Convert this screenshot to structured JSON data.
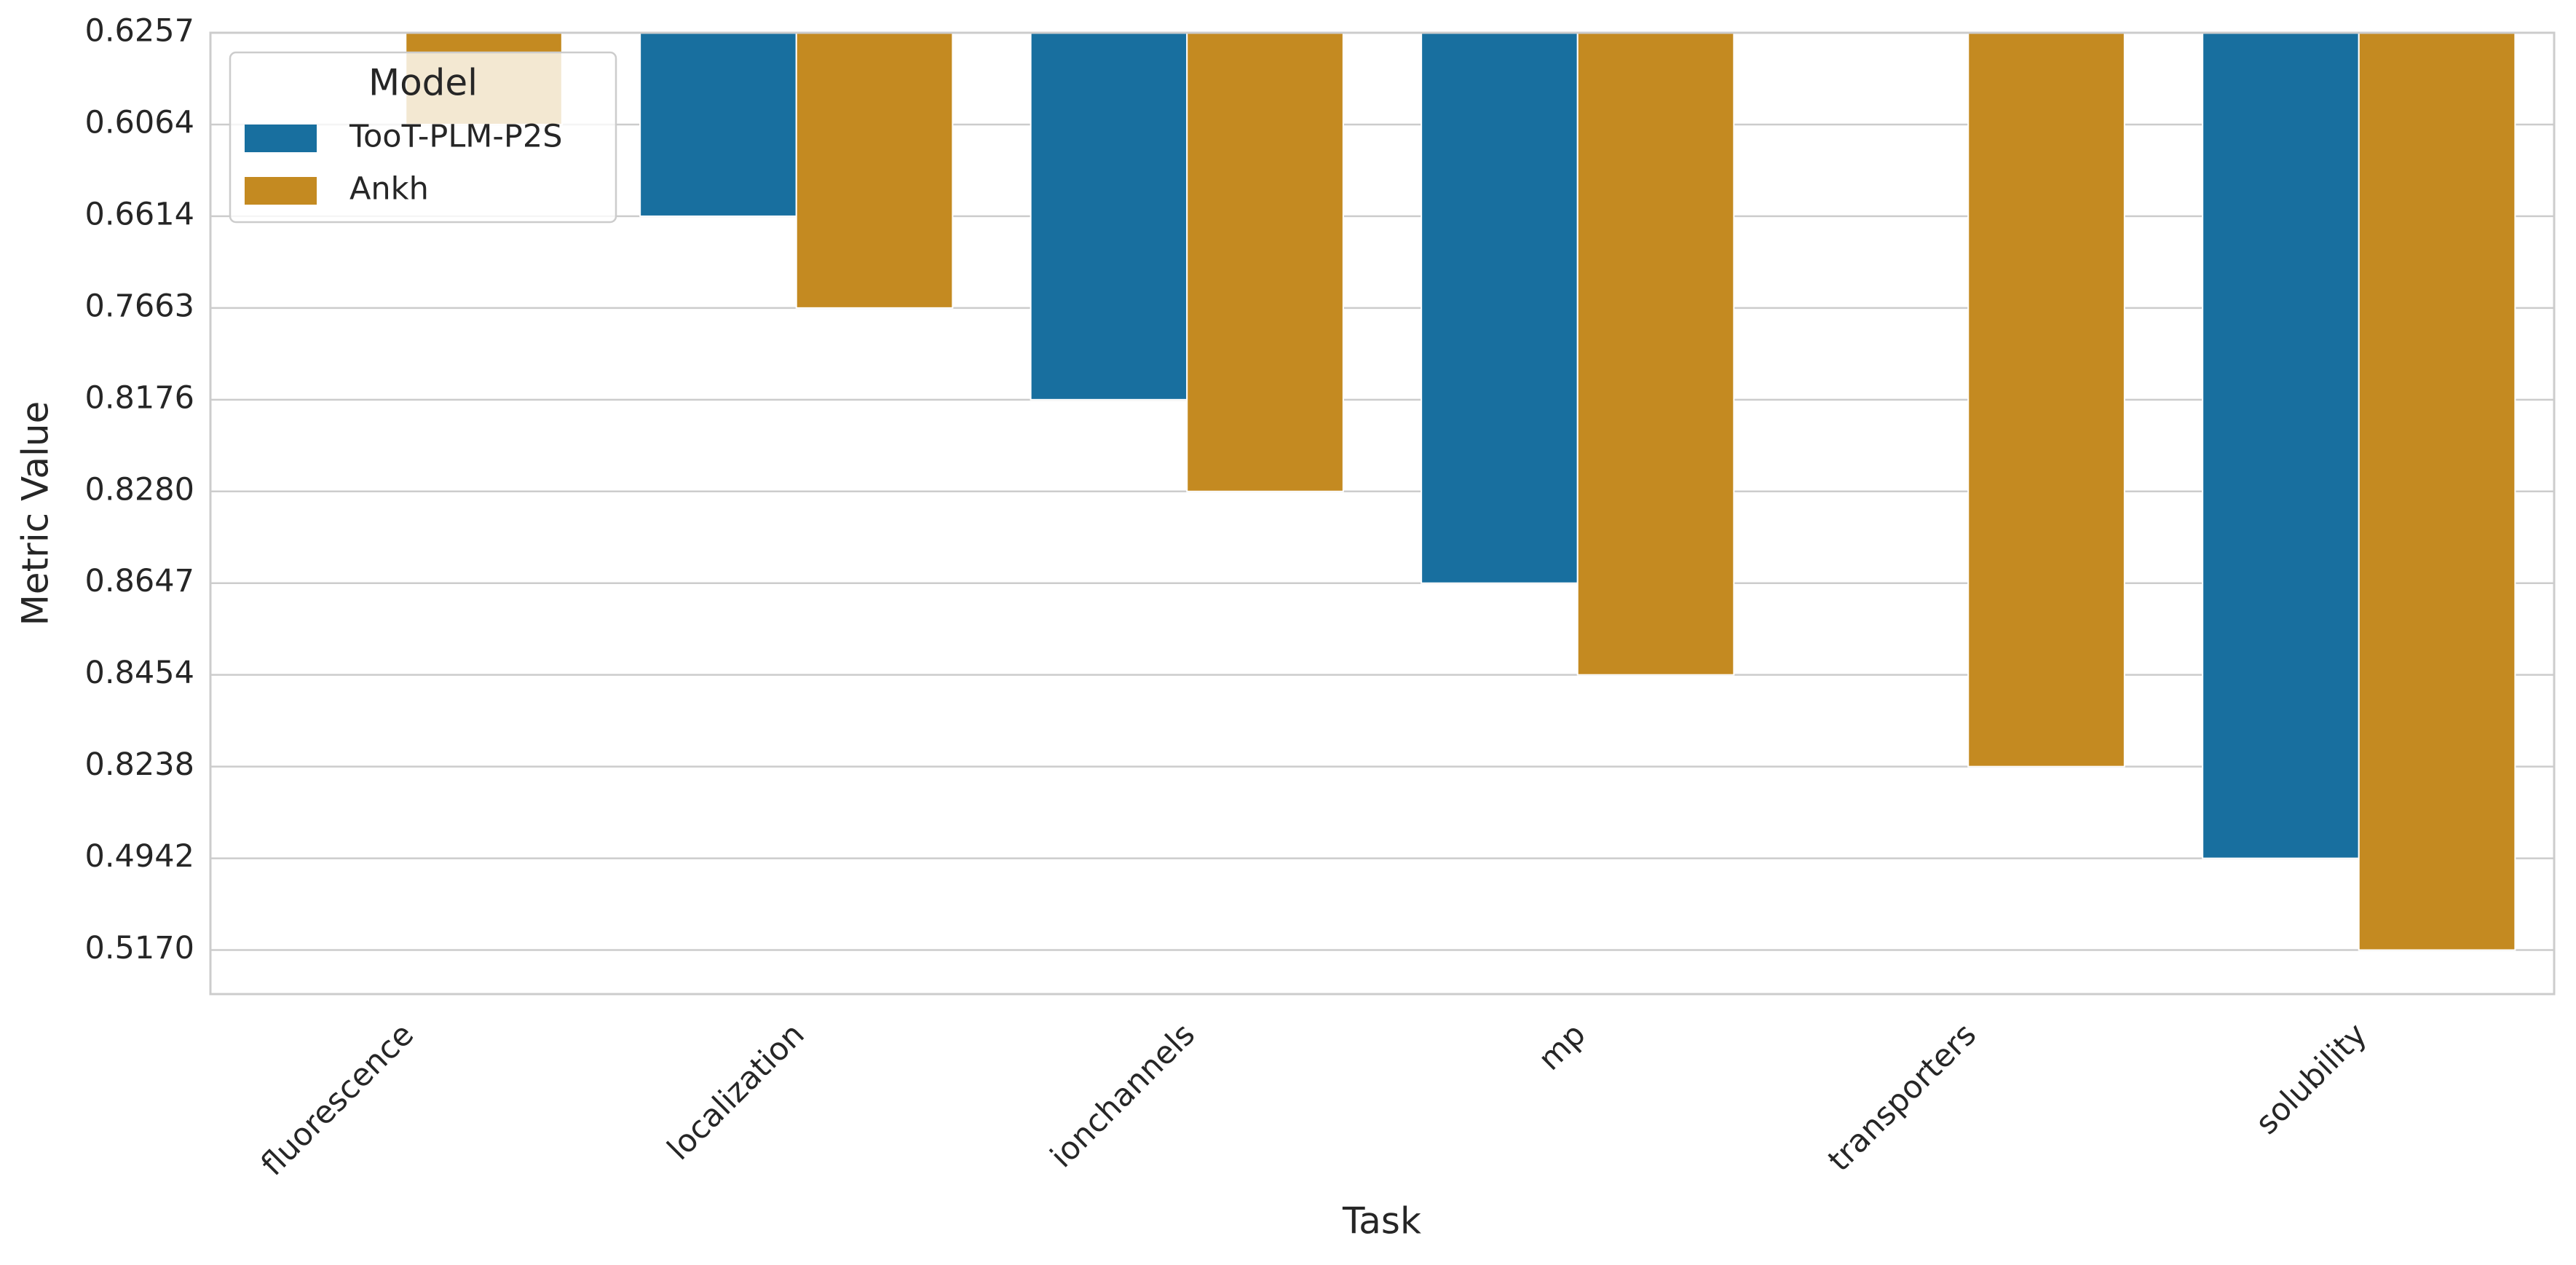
{
  "chart_data": {
    "type": "bar",
    "x_label": "Task",
    "y_label": "Metric Value",
    "categories": [
      "fluorescence",
      "localization",
      "ionchannels",
      "mp",
      "transporters",
      "solubility"
    ],
    "series": [
      {
        "name": "TooT-PLM-P2S",
        "color": "#186f9f",
        "values": [
          0,
          2,
          4,
          6,
          null,
          9
        ]
      },
      {
        "name": "Ankh",
        "color": "#c48a21",
        "values": [
          1,
          3,
          5,
          7,
          8,
          10
        ]
      }
    ],
    "ylim": [
      0,
      10.48
    ],
    "y_inverted": true,
    "yticks": [
      {
        "value": 0,
        "label": "0.6257"
      },
      {
        "value": 1,
        "label": "0.6064"
      },
      {
        "value": 2,
        "label": "0.6614"
      },
      {
        "value": 3,
        "label": "0.7663"
      },
      {
        "value": 4,
        "label": "0.8176"
      },
      {
        "value": 5,
        "label": "0.8280"
      },
      {
        "value": 6,
        "label": "0.8647"
      },
      {
        "value": 7,
        "label": "0.8454"
      },
      {
        "value": 8,
        "label": "0.8238"
      },
      {
        "value": 9,
        "label": "0.4942"
      },
      {
        "value": 10,
        "label": "0.5170"
      }
    ],
    "grid": true,
    "legend": {
      "title": "Model",
      "position": "upper-left"
    }
  }
}
